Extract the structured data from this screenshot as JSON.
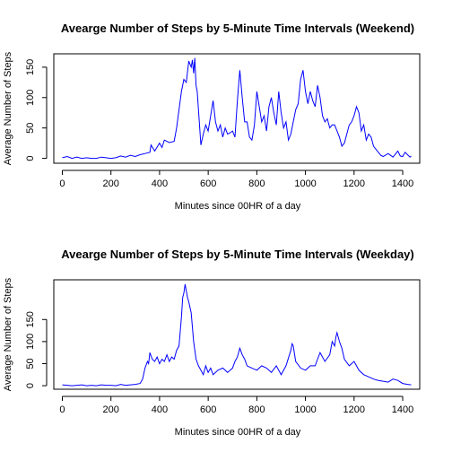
{
  "chart_data": [
    {
      "type": "line",
      "title": "Avearge Number of Steps by 5-Minute Time Intervals (Weekend)",
      "xlabel": "Minutes since 00HR of a day",
      "ylabel": "Average Number of Steps",
      "xlim": [
        -35,
        1470
      ],
      "ylim": [
        -8,
        172
      ],
      "xticks": [
        0,
        200,
        400,
        600,
        800,
        1000,
        1200,
        1400
      ],
      "yticks": [
        0,
        50,
        100,
        150
      ],
      "grid": false,
      "line_color": "#0000ff",
      "series": [
        {
          "x": [
            0,
            20,
            40,
            60,
            80,
            100,
            120,
            140,
            160,
            180,
            200,
            220,
            240,
            260,
            280,
            300,
            320,
            340,
            360,
            365,
            380,
            400,
            410,
            420,
            440,
            460,
            470,
            480,
            490,
            500,
            510,
            520,
            530,
            535,
            540,
            545,
            550,
            555,
            560,
            570,
            580,
            590,
            600,
            610,
            620,
            630,
            640,
            650,
            660,
            670,
            680,
            690,
            700,
            710,
            720,
            730,
            740,
            750,
            760,
            770,
            780,
            790,
            800,
            810,
            820,
            830,
            840,
            850,
            860,
            870,
            880,
            890,
            900,
            910,
            920,
            930,
            940,
            950,
            960,
            970,
            980,
            990,
            1000,
            1010,
            1020,
            1030,
            1040,
            1050,
            1060,
            1070,
            1080,
            1090,
            1100,
            1110,
            1120,
            1130,
            1140,
            1150,
            1160,
            1170,
            1180,
            1190,
            1200,
            1210,
            1220,
            1230,
            1240,
            1250,
            1260,
            1270,
            1280,
            1290,
            1300,
            1310,
            1320,
            1340,
            1360,
            1380,
            1390,
            1400,
            1410,
            1420,
            1430,
            1435
          ],
          "values": [
            1,
            3,
            0,
            2,
            0,
            1,
            0,
            0,
            2,
            1,
            0,
            1,
            4,
            2,
            5,
            3,
            6,
            8,
            10,
            22,
            12,
            25,
            18,
            30,
            26,
            28,
            50,
            80,
            110,
            130,
            125,
            160,
            150,
            162,
            140,
            165,
            120,
            110,
            80,
            22,
            40,
            55,
            45,
            70,
            95,
            60,
            45,
            55,
            35,
            50,
            40,
            42,
            45,
            35,
            95,
            145,
            100,
            60,
            60,
            35,
            30,
            55,
            110,
            85,
            60,
            70,
            45,
            85,
            100,
            75,
            55,
            110,
            75,
            50,
            60,
            30,
            40,
            60,
            80,
            90,
            130,
            145,
            110,
            90,
            110,
            95,
            85,
            120,
            100,
            70,
            60,
            65,
            50,
            55,
            55,
            45,
            35,
            20,
            25,
            40,
            55,
            60,
            70,
            85,
            75,
            45,
            55,
            30,
            40,
            35,
            20,
            15,
            10,
            5,
            3,
            8,
            2,
            12,
            4,
            3,
            10,
            6,
            2,
            4
          ]
        }
      ]
    },
    {
      "type": "line",
      "title": "Avearge Number of Steps by 5-Minute Time Intervals (Weekday)",
      "xlabel": "Minutes since 00HR of a day",
      "ylabel": "Average Number of Steps",
      "xlim": [
        -35,
        1470
      ],
      "ylim": [
        -8,
        240
      ],
      "xticks": [
        0,
        200,
        400,
        600,
        800,
        1000,
        1200,
        1400
      ],
      "yticks": [
        0,
        50,
        100,
        150
      ],
      "grid": false,
      "line_color": "#0000ff",
      "series": [
        {
          "x": [
            0,
            20,
            40,
            60,
            80,
            100,
            120,
            140,
            160,
            180,
            200,
            220,
            240,
            260,
            280,
            300,
            320,
            330,
            340,
            350,
            355,
            360,
            370,
            380,
            390,
            400,
            410,
            420,
            430,
            440,
            450,
            460,
            470,
            480,
            490,
            495,
            500,
            505,
            510,
            515,
            520,
            530,
            540,
            550,
            560,
            570,
            580,
            590,
            600,
            610,
            620,
            640,
            660,
            680,
            700,
            710,
            720,
            730,
            740,
            750,
            760,
            780,
            800,
            820,
            840,
            860,
            880,
            900,
            920,
            940,
            945,
            950,
            960,
            980,
            1000,
            1020,
            1040,
            1050,
            1060,
            1080,
            1100,
            1110,
            1120,
            1125,
            1130,
            1140,
            1150,
            1160,
            1180,
            1200,
            1220,
            1240,
            1260,
            1280,
            1300,
            1320,
            1340,
            1360,
            1380,
            1400,
            1420,
            1435
          ],
          "values": [
            2,
            1,
            0,
            1,
            2,
            0,
            1,
            0,
            2,
            1,
            1,
            0,
            3,
            1,
            2,
            3,
            5,
            15,
            40,
            55,
            50,
            75,
            60,
            55,
            65,
            50,
            60,
            55,
            70,
            55,
            65,
            60,
            80,
            90,
            155,
            200,
            210,
            230,
            215,
            200,
            190,
            165,
            100,
            60,
            45,
            35,
            25,
            45,
            30,
            40,
            25,
            35,
            40,
            30,
            40,
            55,
            65,
            85,
            70,
            60,
            45,
            40,
            35,
            45,
            40,
            30,
            45,
            25,
            45,
            80,
            95,
            90,
            55,
            40,
            35,
            45,
            45,
            60,
            75,
            55,
            70,
            100,
            90,
            110,
            120,
            100,
            85,
            60,
            45,
            55,
            35,
            25,
            20,
            15,
            12,
            10,
            8,
            15,
            12,
            5,
            3,
            2
          ]
        }
      ]
    }
  ]
}
